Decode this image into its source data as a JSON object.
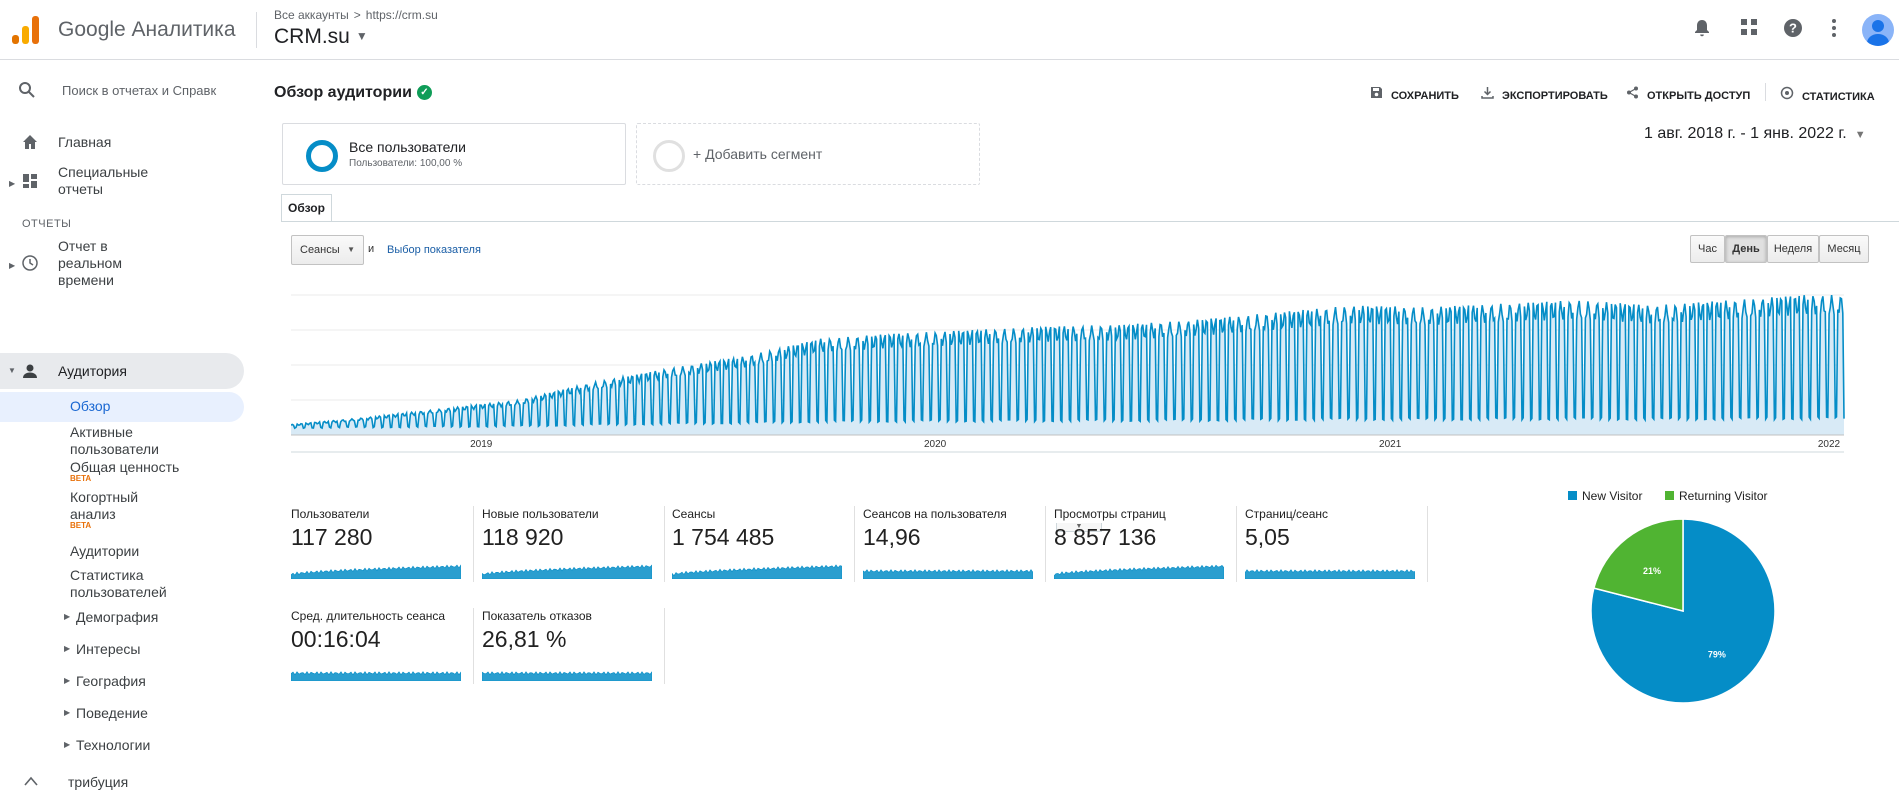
{
  "app": {
    "name": "Google Аналитика"
  },
  "breadcrumb": {
    "all_accounts": "Все аккаунты",
    "sep": ">",
    "property": "https://crm.su"
  },
  "account": {
    "name": "CRM.su"
  },
  "sidebar": {
    "search_placeholder": "Поиск в отчетах и Справк",
    "home": "Главная",
    "custom_reports_l1": "Специальные",
    "custom_reports_l2": "отчеты",
    "section_reports": "ОТЧЕТЫ",
    "realtime_l1": "Отчет в",
    "realtime_l2": "реальном",
    "realtime_l3": "времени",
    "audience": "Аудитория",
    "overview": "Обзор",
    "active_users_l1": "Активные",
    "active_users_l2": "пользователи",
    "lifetime_value": "Общая ценность",
    "beta": "BETA",
    "cohort_l1": "Когортный",
    "cohort_l2": "анализ",
    "audiences": "Аудитории",
    "user_stats_l1": "Статистика",
    "user_stats_l2": "пользователей",
    "demographics": "Демография",
    "interests": "Интересы",
    "geo": "География",
    "behavior": "Поведение",
    "technology": "Технологии",
    "attribution": "трибуция"
  },
  "header": {
    "title": "Обзор аудитории",
    "save": "СОХРАНИТЬ",
    "export": "ЭКСПОРТИРОВАТЬ",
    "share": "ОТКРЫТЬ ДОСТУП",
    "insights": "СТАТИСТИКА"
  },
  "segments": {
    "all_users": "Все пользователи",
    "all_users_sub": "Пользователи: 100,00 %",
    "add_segment": "+ Добавить сегмент"
  },
  "date_range": "1 авг. 2018 г. - 1 янв. 2022 г.",
  "tabs": {
    "overview": "Обзор"
  },
  "controls": {
    "metric": "Сеансы",
    "and": "и",
    "choose_metric": "Выбор показателя",
    "hour": "Час",
    "day": "День",
    "week": "Неделя",
    "month": "Месяц"
  },
  "metrics": [
    {
      "label": "Пользователи",
      "value": "117 280"
    },
    {
      "label": "Новые пользователи",
      "value": "118 920"
    },
    {
      "label": "Сеансы",
      "value": "1 754 485"
    },
    {
      "label": "Сеансов на пользователя",
      "value": "14,96"
    },
    {
      "label": "Просмотры страниц",
      "value": "8 857 136"
    },
    {
      "label": "Страниц/сеанс",
      "value": "5,05"
    },
    {
      "label": "Сред. длительность сеанса",
      "value": "00:16:04"
    },
    {
      "label": "Показатель отказов",
      "value": "26,81 %"
    }
  ],
  "pie": {
    "legend_new": "New Visitor",
    "legend_returning": "Returning Visitor",
    "new_pct": 79,
    "returning_pct": 21,
    "new_label": "79%",
    "returning_label": "21%",
    "new_color": "#058dc7",
    "returning_color": "#50b432"
  },
  "chart_data": {
    "type": "area",
    "x_tick_labels": [
      "2019",
      "2020",
      "2021",
      "2022"
    ],
    "x_range": [
      "2018-08-01",
      "2022-01-01"
    ],
    "series": [
      {
        "name": "Сеансы",
        "color": "#058dc7",
        "granularity": "day",
        "weekly_pattern": "weekday high, weekend low",
        "relative_weekday_level_by_month": {
          "2018-08": 0.06,
          "2018-10": 0.1,
          "2018-12": 0.15,
          "2019-02": 0.2,
          "2019-04": 0.3,
          "2019-06": 0.38,
          "2019-08": 0.45,
          "2019-10": 0.55,
          "2019-12": 0.58,
          "2020-02": 0.6,
          "2020-04": 0.62,
          "2020-06": 0.63,
          "2020-08": 0.66,
          "2020-10": 0.7,
          "2020-12": 0.74,
          "2021-02": 0.73,
          "2021-04": 0.75,
          "2021-06": 0.77,
          "2021-08": 0.74,
          "2021-10": 0.77,
          "2021-12": 0.8
        }
      }
    ],
    "grid": true
  }
}
